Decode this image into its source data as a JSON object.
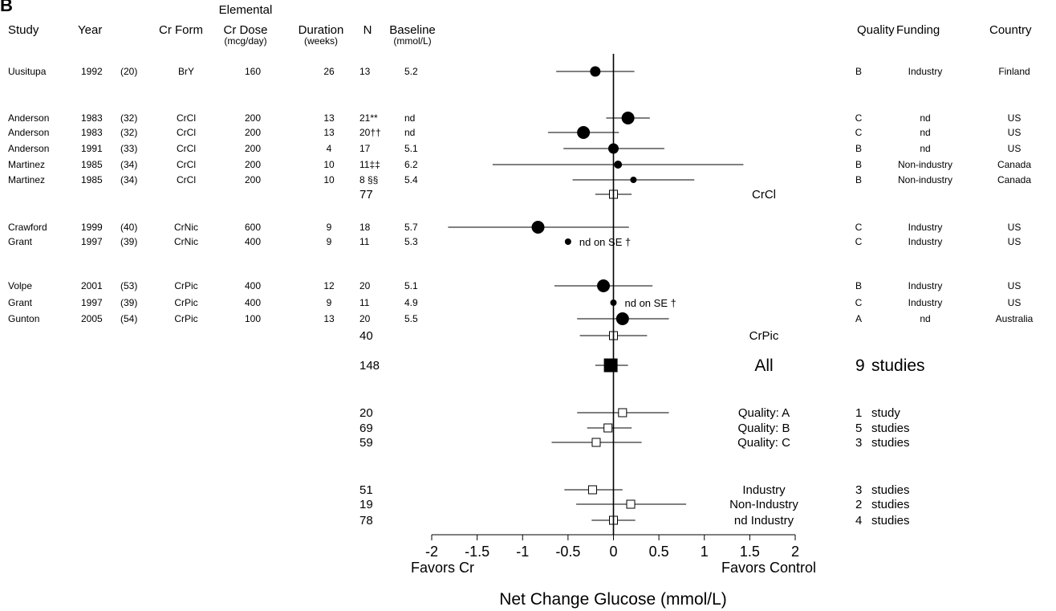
{
  "panel_label": "B",
  "headers": {
    "study": "Study",
    "year": "Year",
    "cr_form": "Cr Form",
    "dose": [
      "Elemental",
      "Cr Dose",
      "(mcg/day)"
    ],
    "duration": [
      "Duration",
      "(weeks)"
    ],
    "n": "N",
    "baseline": [
      "Baseline",
      "(mmol/L)"
    ],
    "quality": "Quality",
    "funding": "Funding",
    "country": "Country"
  },
  "studies": [
    {
      "study": "Uusitupa",
      "year": "1992",
      "ref": "(20)",
      "form": "BrY",
      "dose": "160",
      "dur": "26",
      "n": "13",
      "base": "5.2",
      "est": -0.2,
      "lo": -0.63,
      "hi": 0.23,
      "q": "B",
      "funding": "Industry",
      "country": "Finland",
      "size": "m"
    },
    {
      "study": "Anderson",
      "year": "1983",
      "ref": "(32)",
      "form": "CrCl",
      "dose": "200",
      "dur": "13",
      "n": "21**",
      "base": "nd",
      "est": 0.16,
      "lo": -0.08,
      "hi": 0.4,
      "q": "C",
      "funding": "nd",
      "country": "US",
      "size": "l"
    },
    {
      "study": "Anderson",
      "year": "1983",
      "ref": "(32)",
      "form": "CrCl",
      "dose": "200",
      "dur": "13",
      "n": "20††",
      "base": "nd",
      "est": -0.33,
      "lo": -0.72,
      "hi": 0.06,
      "q": "C",
      "funding": "nd",
      "country": "US",
      "size": "l"
    },
    {
      "study": "Anderson",
      "year": "1991",
      "ref": "(33)",
      "form": "CrCl",
      "dose": "200",
      "dur": "4",
      "n": "17",
      "base": "5.1",
      "est": 0.0,
      "lo": -0.55,
      "hi": 0.56,
      "q": "B",
      "funding": "nd",
      "country": "US",
      "size": "m"
    },
    {
      "study": "Martinez",
      "year": "1985",
      "ref": "(34)",
      "form": "CrCl",
      "dose": "200",
      "dur": "10",
      "n": "11‡‡",
      "base": "6.2",
      "est": 0.05,
      "lo": -1.33,
      "hi": 1.43,
      "q": "B",
      "funding": "Non-industry",
      "country": "Canada",
      "size": "s"
    },
    {
      "study": "Martinez",
      "year": "1985",
      "ref": "(34)",
      "form": "CrCl",
      "dose": "200",
      "dur": "10",
      "n": "8 §§",
      "base": "5.4",
      "est": 0.22,
      "lo": -0.45,
      "hi": 0.89,
      "q": "B",
      "funding": "Non-industry",
      "country": "Canada",
      "size": "xs"
    },
    {
      "study": "Crawford",
      "year": "1999",
      "ref": "(40)",
      "form": "CrNic",
      "dose": "600",
      "dur": "9",
      "n": "18",
      "base": "5.7",
      "est": -0.83,
      "lo": -1.82,
      "hi": 0.17,
      "q": "C",
      "funding": "Industry",
      "country": "US",
      "size": "l"
    },
    {
      "study": "Grant",
      "year": "1997",
      "ref": "(39)",
      "form": "CrNic",
      "dose": "400",
      "dur": "9",
      "n": "11",
      "base": "5.3",
      "est": -0.5,
      "lo": null,
      "hi": null,
      "note": "nd on SE †",
      "q": "C",
      "funding": "Industry",
      "country": "US",
      "size": "xs"
    },
    {
      "study": "Volpe",
      "year": "2001",
      "ref": "(53)",
      "form": "CrPic",
      "dose": "400",
      "dur": "12",
      "n": "20",
      "base": "5.1",
      "est": -0.11,
      "lo": -0.65,
      "hi": 0.43,
      "q": "B",
      "funding": "Industry",
      "country": "US",
      "size": "l"
    },
    {
      "study": "Grant",
      "year": "1997",
      "ref": "(39)",
      "form": "CrPic",
      "dose": "400",
      "dur": "9",
      "n": "11",
      "base": "4.9",
      "est": 0.0,
      "lo": null,
      "hi": null,
      "note": "nd on SE †",
      "q": "C",
      "funding": "Industry",
      "country": "US",
      "size": "xs"
    },
    {
      "study": "Gunton",
      "year": "2005",
      "ref": "(54)",
      "form": "CrPic",
      "dose": "100",
      "dur": "13",
      "n": "20",
      "base": "5.5",
      "est": 0.1,
      "lo": -0.4,
      "hi": 0.61,
      "q": "A",
      "funding": "nd",
      "country": "Australia",
      "size": "l"
    }
  ],
  "subgroups": [
    {
      "n": "77",
      "label": "CrCl",
      "count": "",
      "count_label": "",
      "est": 0.0,
      "lo": -0.2,
      "hi": 0.2,
      "marker": "open"
    },
    {
      "n": "40",
      "label": "CrPic",
      "count": "",
      "count_label": "",
      "est": 0.0,
      "lo": -0.37,
      "hi": 0.37,
      "marker": "open"
    },
    {
      "n": "148",
      "label": "All",
      "count": "9",
      "count_label": "studies",
      "est": -0.03,
      "lo": -0.2,
      "hi": 0.16,
      "marker": "filled"
    },
    {
      "n": "20",
      "label": "Quality: A",
      "count": "1",
      "count_label": "study",
      "est": 0.1,
      "lo": -0.4,
      "hi": 0.61,
      "marker": "open"
    },
    {
      "n": "69",
      "label": "Quality: B",
      "count": "5",
      "count_label": "studies",
      "est": -0.06,
      "lo": -0.29,
      "hi": 0.2,
      "marker": "open"
    },
    {
      "n": "59",
      "label": "Quality: C",
      "count": "3",
      "count_label": "studies",
      "est": -0.19,
      "lo": -0.68,
      "hi": 0.31,
      "marker": "open"
    },
    {
      "n": "51",
      "label": "Industry",
      "count": "3",
      "count_label": "studies",
      "est": -0.23,
      "lo": -0.54,
      "hi": 0.1,
      "marker": "open"
    },
    {
      "n": "19",
      "label": "Non-Industry",
      "count": "2",
      "count_label": "studies",
      "est": 0.19,
      "lo": -0.41,
      "hi": 0.8,
      "marker": "open"
    },
    {
      "n": "78",
      "label": "nd Industry",
      "count": "4",
      "count_label": "studies",
      "est": 0.0,
      "lo": -0.24,
      "hi": 0.24,
      "marker": "open"
    }
  ],
  "chart_data": {
    "type": "forest",
    "xlabel": "Net Change Glucose (mmol/L)",
    "xlim": [
      -2,
      2
    ],
    "xticks": [
      "-2",
      "-1.5",
      "-1",
      "-0.5",
      "0",
      "0.5",
      "1",
      "1.5",
      "2"
    ],
    "xtick_values": [
      -2,
      -1.5,
      -1,
      -0.5,
      0,
      0.5,
      1,
      1.5,
      2
    ],
    "left_label": "Favors Cr",
    "right_label": "Favors Control",
    "reference_line": 0,
    "grid": false
  }
}
